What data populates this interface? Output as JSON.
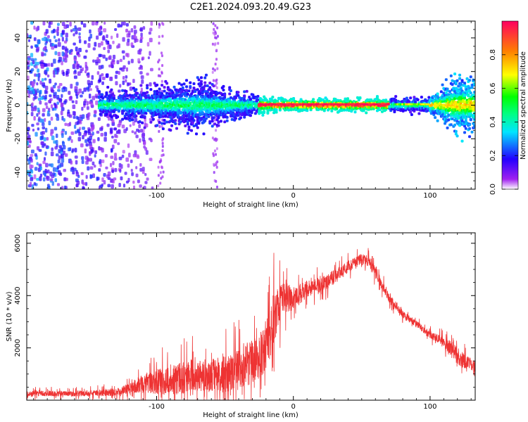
{
  "title": "C2E1.2024.093.20.49.G23",
  "chart_data": [
    {
      "type": "heatmap",
      "xlabel": "Height of straight line (km)",
      "ylabel": "Frequency (Hz)",
      "xlim": [
        -195,
        133
      ],
      "ylim": [
        -50,
        50
      ],
      "x_ticks": [
        -100,
        0,
        100
      ],
      "y_ticks": [
        -40,
        -20,
        0,
        20,
        40
      ],
      "colorbar": {
        "label": "Normalized spectral amplitude",
        "range": [
          0,
          1
        ],
        "ticks": [
          0.0,
          0.2,
          0.4,
          0.6,
          0.8
        ],
        "colormap": [
          "#ffffff",
          "#8a00ff",
          "#2200ff",
          "#00e5ff",
          "#00ff40",
          "#ffff00",
          "#ff8000",
          "#ff0060"
        ]
      },
      "features": {
        "noise_region_x": [
          -195,
          -103
        ],
        "noise_vertical_bands_x": [
          -57,
          -97
        ],
        "signal_band": [
          {
            "x": -140,
            "width_hz": 6
          },
          {
            "x": -100,
            "width_hz": 9
          },
          {
            "x": -70,
            "width_hz": 12
          },
          {
            "x": -40,
            "width_hz": 7
          },
          {
            "x": -20,
            "width_hz": 4
          },
          {
            "x": 0,
            "width_hz": 3
          },
          {
            "x": 50,
            "width_hz": 3
          },
          {
            "x": 100,
            "width_hz": 4
          },
          {
            "x": 120,
            "width_hz": 14
          }
        ],
        "peak_line_x": [
          -25,
          70
        ]
      }
    },
    {
      "type": "line",
      "xlabel": "Height of straight line (km)",
      "ylabel": "SNR (10 * v/v)",
      "xlim": [
        -195,
        133
      ],
      "ylim": [
        0,
        6400
      ],
      "x_ticks": [
        -100,
        0,
        100
      ],
      "y_ticks": [
        2000,
        4000,
        6000
      ],
      "line_color": "#ee3333",
      "envelope": {
        "x": [
          -195,
          -160,
          -130,
          -120,
          -110,
          -100,
          -90,
          -80,
          -70,
          -60,
          -50,
          -40,
          -30,
          -20,
          -15,
          -10,
          -5,
          0,
          10,
          20,
          30,
          40,
          50,
          55,
          60,
          70,
          80,
          90,
          100,
          110,
          115,
          120,
          125,
          133
        ],
        "mean": [
          250,
          250,
          300,
          450,
          650,
          700,
          750,
          850,
          950,
          950,
          1000,
          1150,
          1450,
          1900,
          3000,
          3800,
          4000,
          3800,
          4300,
          4400,
          4700,
          5100,
          5400,
          5300,
          4900,
          3900,
          3300,
          2900,
          2500,
          2200,
          2000,
          1700,
          1500,
          1300
        ],
        "noise": [
          150,
          150,
          200,
          300,
          500,
          700,
          800,
          900,
          900,
          950,
          1000,
          1100,
          1200,
          1300,
          1500,
          1100,
          900,
          600,
          500,
          400,
          400,
          300,
          300,
          300,
          300,
          250,
          200,
          200,
          200,
          300,
          400,
          500,
          400,
          300
        ]
      }
    }
  ]
}
